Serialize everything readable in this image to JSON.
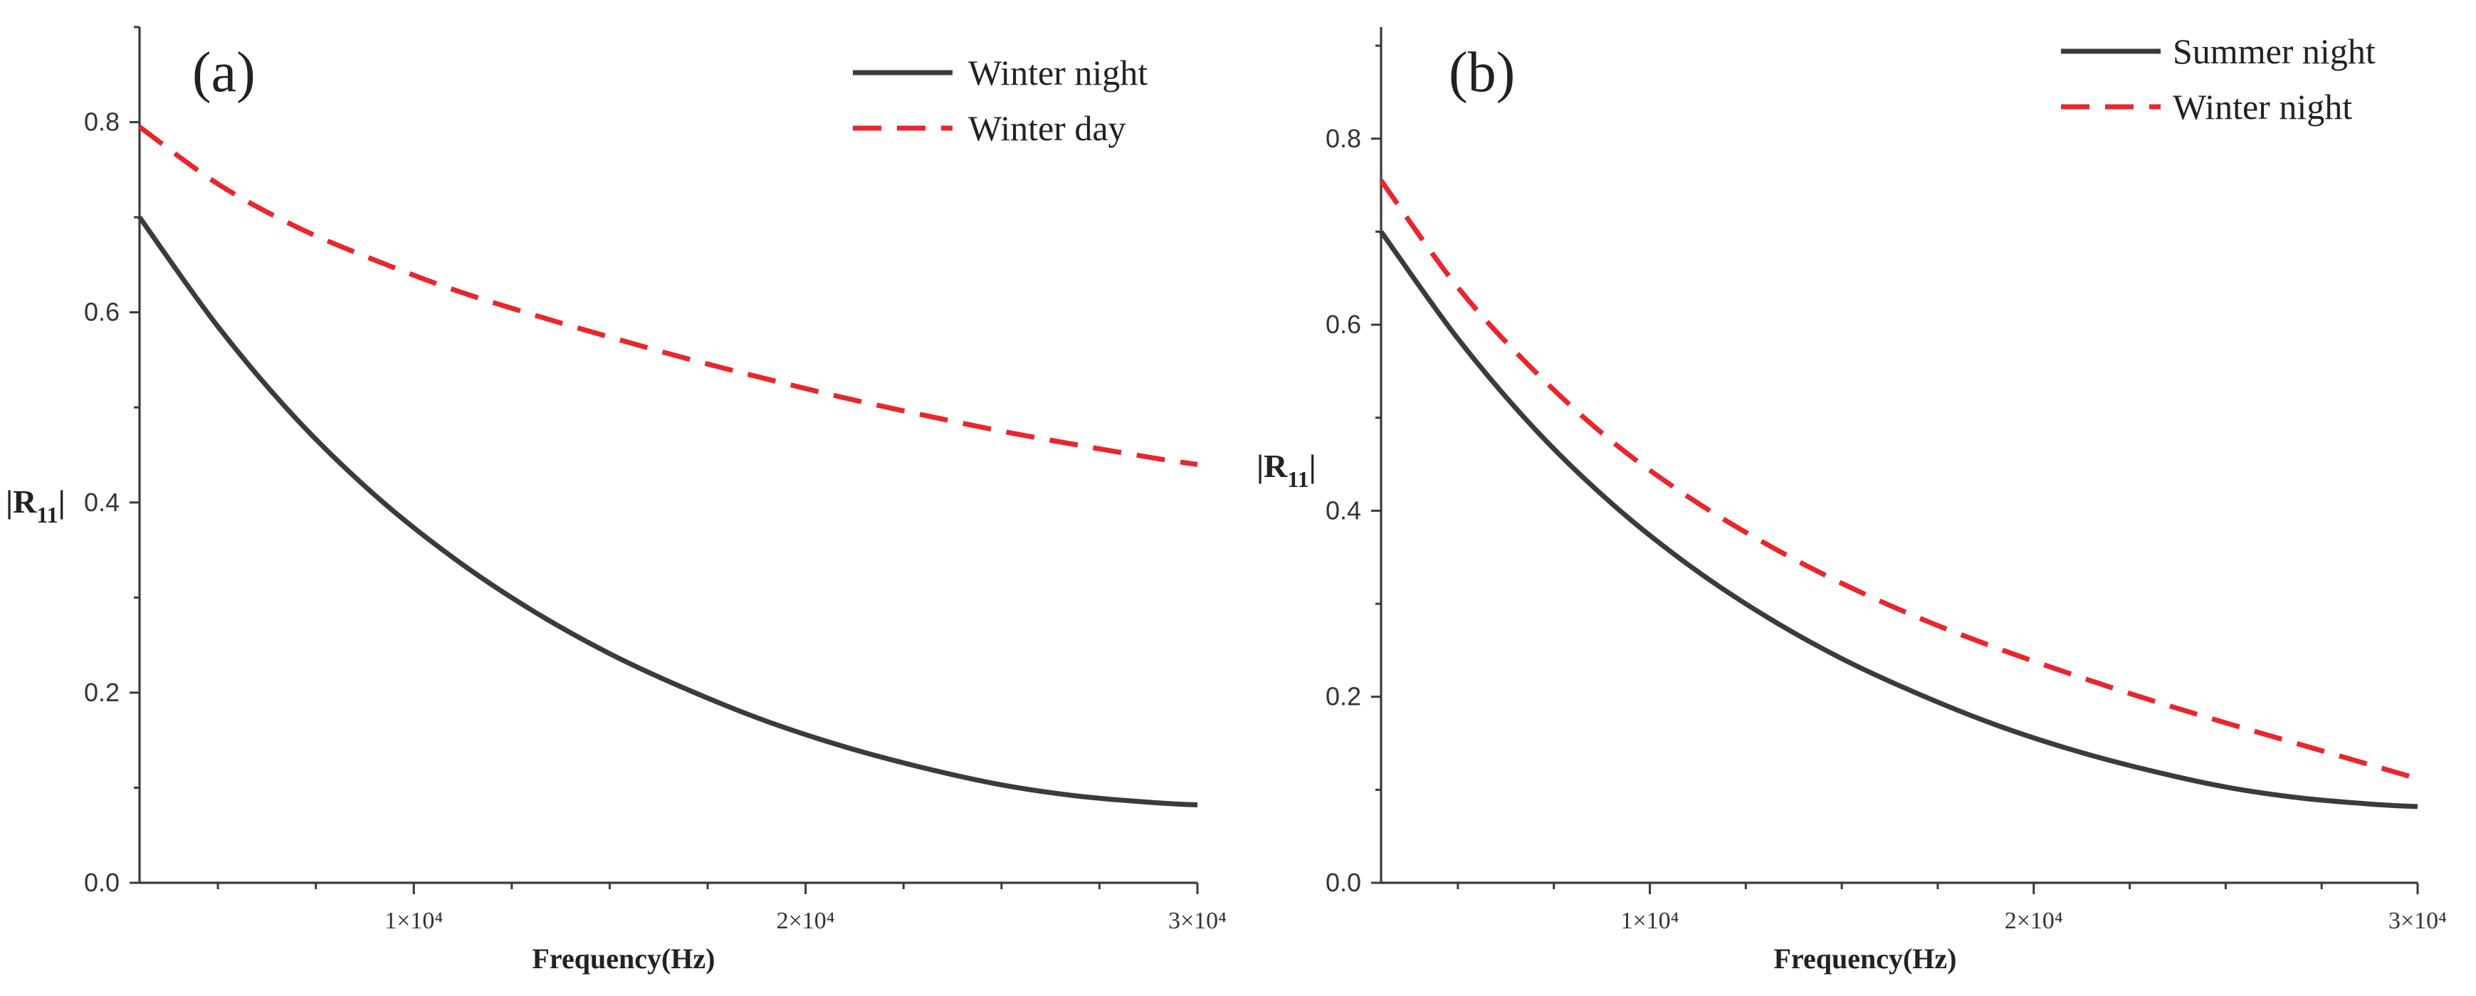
{
  "chart_data": [
    {
      "type": "line",
      "panel_label": "(a)",
      "xlabel": "Frequency(Hz)",
      "ylabel": "|R11|",
      "ylabel_base": "|R",
      "ylabel_sub": "11",
      "ylabel_end": "|",
      "xlim": [
        3000,
        30000
      ],
      "ylim": [
        0,
        0.9
      ],
      "yticks": [
        "0.0",
        "0.2",
        "0.4",
        "0.6",
        "0.8"
      ],
      "xticks": [
        "1×10⁴",
        "2×10⁴",
        "3×10⁴"
      ],
      "x": [
        3000,
        5000,
        7000,
        9000,
        11000,
        13000,
        15000,
        17000,
        19000,
        21000,
        23000,
        25000,
        27000,
        29000,
        30000
      ],
      "series": [
        {
          "name": "Winter night",
          "color": "#3b3b3b",
          "style": "solid",
          "values": [
            0.7,
            0.585,
            0.488,
            0.408,
            0.342,
            0.287,
            0.241,
            0.203,
            0.17,
            0.143,
            0.121,
            0.103,
            0.091,
            0.084,
            0.082
          ]
        },
        {
          "name": "Winter day",
          "color": "#e8262c",
          "style": "dashed",
          "values": [
            0.795,
            0.735,
            0.69,
            0.655,
            0.624,
            0.598,
            0.574,
            0.551,
            0.53,
            0.51,
            0.492,
            0.475,
            0.46,
            0.446,
            0.44
          ]
        }
      ],
      "legend_position": "top-right"
    },
    {
      "type": "line",
      "panel_label": "(b)",
      "xlabel": "Frequency(Hz)",
      "ylabel": "|R11|",
      "ylabel_base": "|R",
      "ylabel_sub": "11",
      "ylabel_end": "|",
      "xlim": [
        3000,
        30000
      ],
      "ylim": [
        0,
        0.92
      ],
      "yticks": [
        "0.0",
        "0.2",
        "0.4",
        "0.6",
        "0.8"
      ],
      "xticks": [
        "1×10⁴",
        "2×10⁴",
        "3×10⁴"
      ],
      "x": [
        3000,
        5000,
        7000,
        9000,
        11000,
        13000,
        15000,
        17000,
        19000,
        21000,
        23000,
        25000,
        27000,
        29000,
        30000
      ],
      "series": [
        {
          "name": "Summer night",
          "color": "#3b3b3b",
          "style": "solid",
          "values": [
            0.7,
            0.585,
            0.488,
            0.408,
            0.342,
            0.287,
            0.241,
            0.203,
            0.17,
            0.143,
            0.121,
            0.103,
            0.091,
            0.084,
            0.082
          ]
        },
        {
          "name": "Winter night",
          "color": "#e8262c",
          "style": "dashed",
          "values": [
            0.755,
            0.64,
            0.55,
            0.475,
            0.415,
            0.365,
            0.322,
            0.285,
            0.253,
            0.224,
            0.197,
            0.172,
            0.148,
            0.124,
            0.112
          ]
        }
      ],
      "legend_position": "top-right"
    }
  ]
}
